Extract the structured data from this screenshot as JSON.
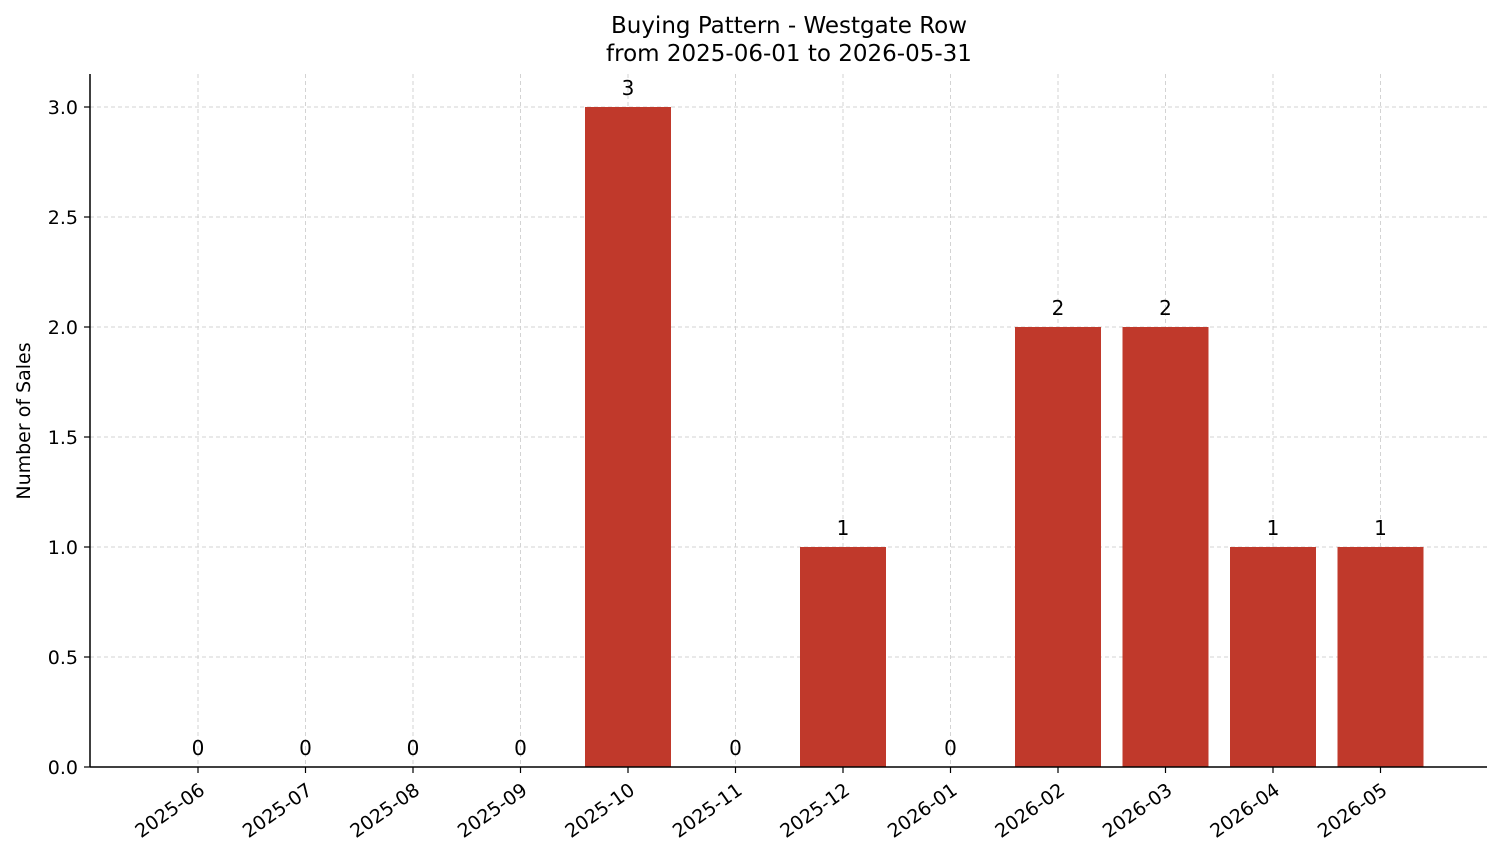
{
  "chart_data": {
    "type": "bar",
    "title": "Buying Pattern - Westgate Row",
    "subtitle": "from 2025-06-01 to 2026-05-31",
    "xlabel": "",
    "ylabel": "Number of Sales",
    "categories": [
      "2025-06",
      "2025-07",
      "2025-08",
      "2025-09",
      "2025-10",
      "2025-11",
      "2025-12",
      "2026-01",
      "2026-02",
      "2026-03",
      "2026-04",
      "2026-05"
    ],
    "values": [
      0,
      0,
      0,
      0,
      3,
      0,
      1,
      0,
      2,
      2,
      1,
      1
    ],
    "value_labels": [
      "0",
      "0",
      "0",
      "0",
      "3",
      "0",
      "1",
      "0",
      "2",
      "2",
      "1",
      "1"
    ],
    "ylim": [
      0,
      3.15
    ],
    "yticks": [
      0.0,
      0.5,
      1.0,
      1.5,
      2.0,
      2.5,
      3.0
    ],
    "ytick_labels": [
      "0.0",
      "0.5",
      "1.0",
      "1.5",
      "2.0",
      "2.5",
      "3.0"
    ],
    "grid": true,
    "bar_color": "#c0392b"
  }
}
